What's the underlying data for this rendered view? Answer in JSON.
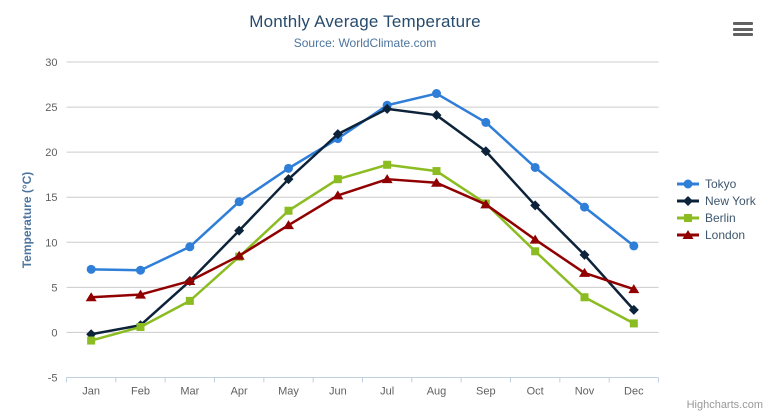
{
  "chart_data": {
    "type": "line",
    "title": "Monthly Average Temperature",
    "subtitle": "Source: WorldClimate.com",
    "xlabel": "",
    "ylabel": "Temperature (°C)",
    "ylim": [
      -5,
      30
    ],
    "ytick_interval": 5,
    "yticks": [
      -5,
      0,
      5,
      10,
      15,
      20,
      25,
      30
    ],
    "grid": "horizontal",
    "legend_position": "right",
    "categories": [
      "Jan",
      "Feb",
      "Mar",
      "Apr",
      "May",
      "Jun",
      "Jul",
      "Aug",
      "Sep",
      "Oct",
      "Nov",
      "Dec"
    ],
    "series": [
      {
        "name": "Tokyo",
        "color": "#2f7ed8",
        "marker": "circle",
        "values": [
          7.0,
          6.9,
          9.5,
          14.5,
          18.2,
          21.5,
          25.2,
          26.5,
          23.3,
          18.3,
          13.9,
          9.6
        ]
      },
      {
        "name": "New York",
        "color": "#0d233a",
        "marker": "diamond",
        "values": [
          -0.2,
          0.8,
          5.7,
          11.3,
          17.0,
          22.0,
          24.8,
          24.1,
          20.1,
          14.1,
          8.6,
          2.5
        ]
      },
      {
        "name": "Berlin",
        "color": "#8bbc21",
        "marker": "square",
        "values": [
          -0.9,
          0.6,
          3.5,
          8.4,
          13.5,
          17.0,
          18.6,
          17.9,
          14.3,
          9.0,
          3.9,
          1.0
        ]
      },
      {
        "name": "London",
        "color": "#910000",
        "marker": "triangle",
        "values": [
          3.9,
          4.2,
          5.7,
          8.5,
          11.9,
          15.2,
          17.0,
          16.6,
          14.2,
          10.3,
          6.6,
          4.8
        ]
      }
    ]
  },
  "credits": {
    "label": "Highcharts.com"
  },
  "icons": {
    "context_menu": "hamburger-menu-icon"
  },
  "theme_colors": {
    "title": "#274b6d",
    "subtitle": "#4d759e",
    "axis_title": "#4d759e",
    "axis_label": "#606060",
    "axis_line": "#c0d0e0",
    "gridline": "#cccccc",
    "legend_text": "#3e576f",
    "credits_text": "#999999",
    "menu_icon": "#616161"
  }
}
